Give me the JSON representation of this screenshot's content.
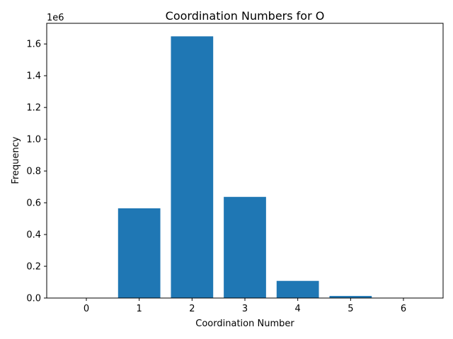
{
  "chart_data": {
    "type": "bar",
    "title": "Coordination Numbers for O",
    "xlabel": "Coordination Number",
    "ylabel": "Frequency",
    "scale_label": "1e6",
    "categories": [
      "0",
      "1",
      "2",
      "3",
      "4",
      "5",
      "6"
    ],
    "values": [
      0,
      565000,
      1648000,
      637000,
      108000,
      13000,
      800
    ],
    "ylim": [
      0,
      1730000
    ],
    "xlim": [
      -0.75,
      6.75
    ],
    "yticks": [
      0,
      200000,
      400000,
      600000,
      800000,
      1000000,
      1200000,
      1400000,
      1600000
    ],
    "ytick_labels": [
      "0.0",
      "0.2",
      "0.4",
      "0.6",
      "0.8",
      "1.0",
      "1.2",
      "1.4",
      "1.6"
    ],
    "bar_color": "#1f77b4",
    "grid": false,
    "legend": "none"
  }
}
